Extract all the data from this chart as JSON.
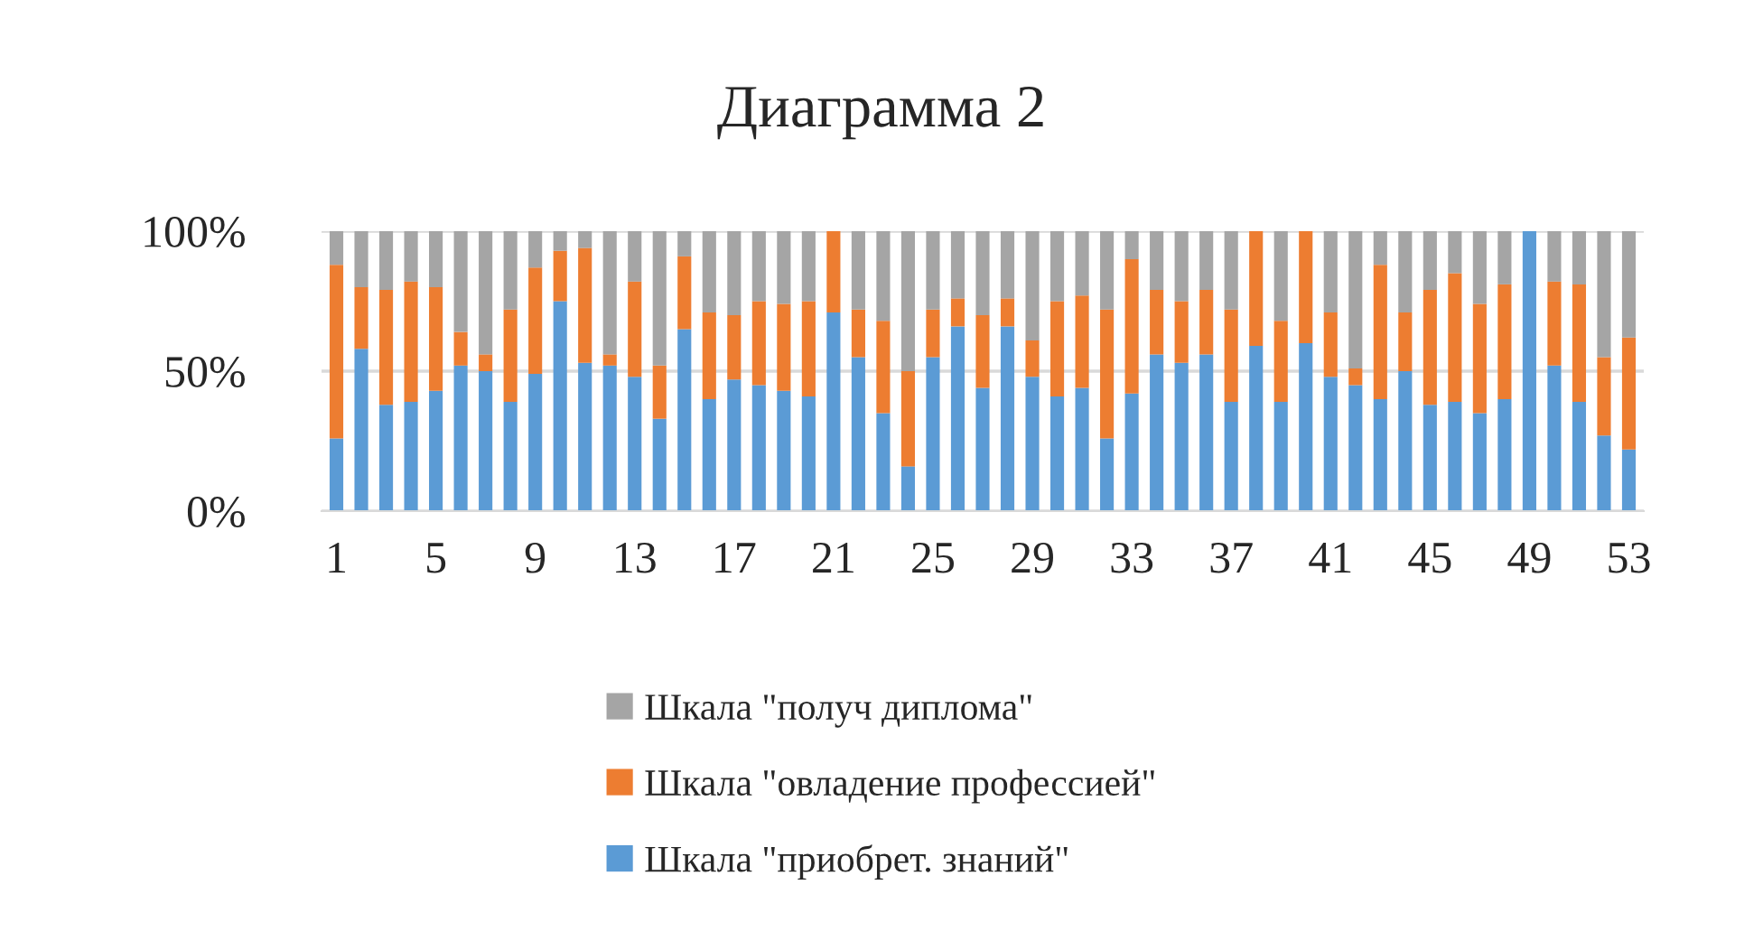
{
  "chart_data": {
    "type": "bar",
    "title": "Диаграмма 2",
    "stacked": true,
    "categories": [
      "1",
      null,
      null,
      null,
      "5",
      null,
      null,
      null,
      "9",
      null,
      null,
      null,
      "13",
      null,
      null,
      null,
      "17",
      null,
      null,
      null,
      "21",
      null,
      null,
      null,
      "25",
      null,
      null,
      null,
      "29",
      null,
      null,
      null,
      "33",
      null,
      null,
      null,
      "37",
      null,
      null,
      null,
      "41",
      null,
      null,
      null,
      "45",
      null,
      null,
      null,
      "49",
      null,
      null,
      null,
      "53"
    ],
    "series": [
      {
        "name": "Шкала \"приобрет. знаний\"",
        "color": "#5b9bd5",
        "values": [
          26,
          58,
          38,
          39,
          43,
          52,
          50,
          39,
          49,
          75,
          53,
          52,
          48,
          33,
          65,
          40,
          47,
          45,
          43,
          41,
          71,
          55,
          35,
          16,
          55,
          66,
          44,
          66,
          48,
          41,
          44,
          26,
          42,
          56,
          53,
          56,
          39,
          59,
          39,
          60,
          48,
          45,
          40,
          50,
          38,
          39,
          35,
          40,
          100,
          52,
          39,
          27,
          22
        ]
      },
      {
        "name": "Шкала \"овладение профессией\"",
        "color": "#ed7d31",
        "values": [
          62,
          22,
          41,
          43,
          37,
          12,
          6,
          33,
          38,
          18,
          41,
          4,
          34,
          19,
          26,
          31,
          23,
          30,
          31,
          34,
          29,
          17,
          33,
          34,
          17,
          10,
          26,
          10,
          13,
          34,
          33,
          46,
          48,
          23,
          22,
          23,
          33,
          41,
          29,
          40,
          23,
          6,
          48,
          21,
          41,
          46,
          39,
          41,
          0,
          30,
          42,
          28,
          40
        ]
      },
      {
        "name": "Шкала \"получ диплома\"",
        "color": "#a5a5a5",
        "values": [
          12,
          20,
          21,
          18,
          20,
          36,
          44,
          28,
          13,
          7,
          6,
          44,
          18,
          48,
          9,
          29,
          30,
          25,
          26,
          25,
          0,
          28,
          32,
          50,
          28,
          24,
          30,
          24,
          39,
          25,
          23,
          28,
          10,
          21,
          25,
          21,
          28,
          0,
          32,
          0,
          29,
          49,
          12,
          29,
          21,
          15,
          26,
          19,
          0,
          18,
          19,
          45,
          38
        ]
      }
    ],
    "ylim": [
      0,
      100
    ],
    "yticks": [
      {
        "value": 0,
        "label": "0%"
      },
      {
        "value": 50,
        "label": "50%"
      },
      {
        "value": 100,
        "label": "100%"
      }
    ],
    "grid": "y",
    "legend": "bottom"
  }
}
